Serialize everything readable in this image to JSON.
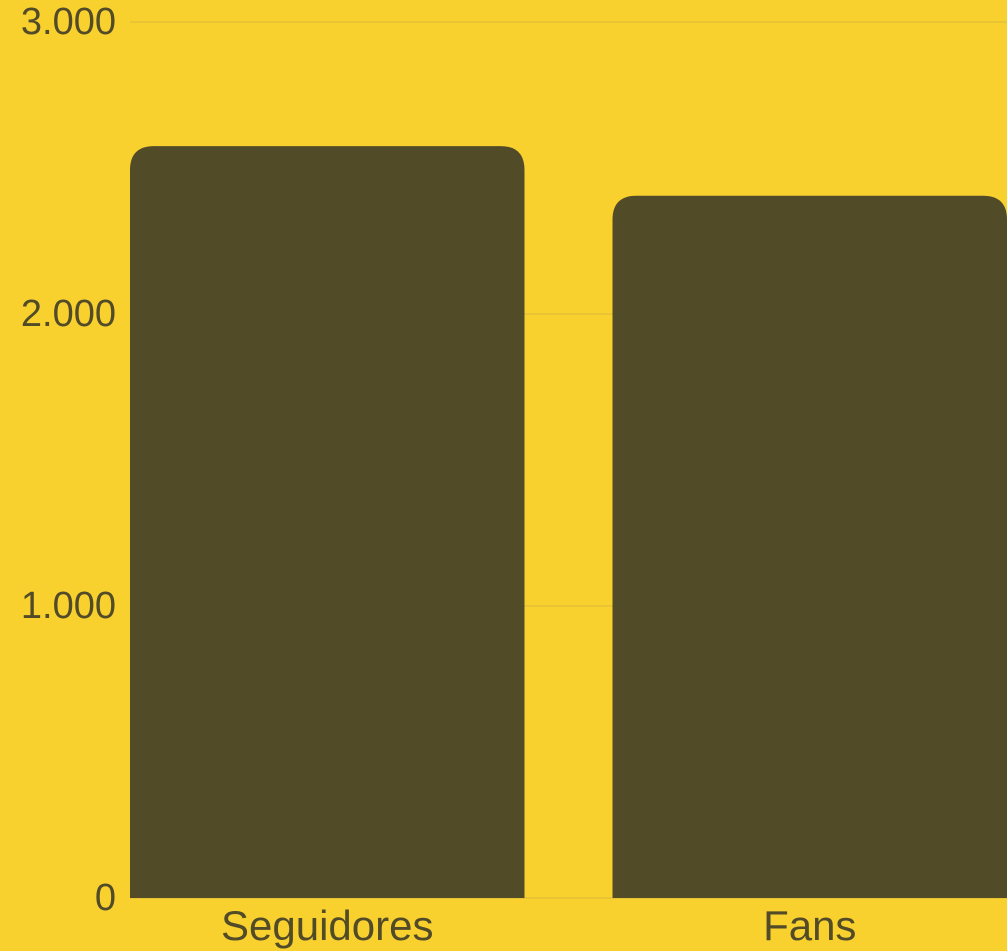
{
  "colors": {
    "background": "#f9d12f",
    "bar": "#524b28",
    "text": "#524b28",
    "grid": "#d9b83a"
  },
  "chart_data": {
    "type": "bar",
    "categories": [
      "Seguidores",
      "Fans"
    ],
    "values": [
      2575,
      2405
    ],
    "ylim": [
      0,
      3000
    ],
    "yticks": [
      0,
      1000,
      2000,
      3000
    ],
    "ytick_labels": [
      "0",
      "1.000",
      "2.000",
      "3.000"
    ],
    "grid": true,
    "legend": "none"
  }
}
